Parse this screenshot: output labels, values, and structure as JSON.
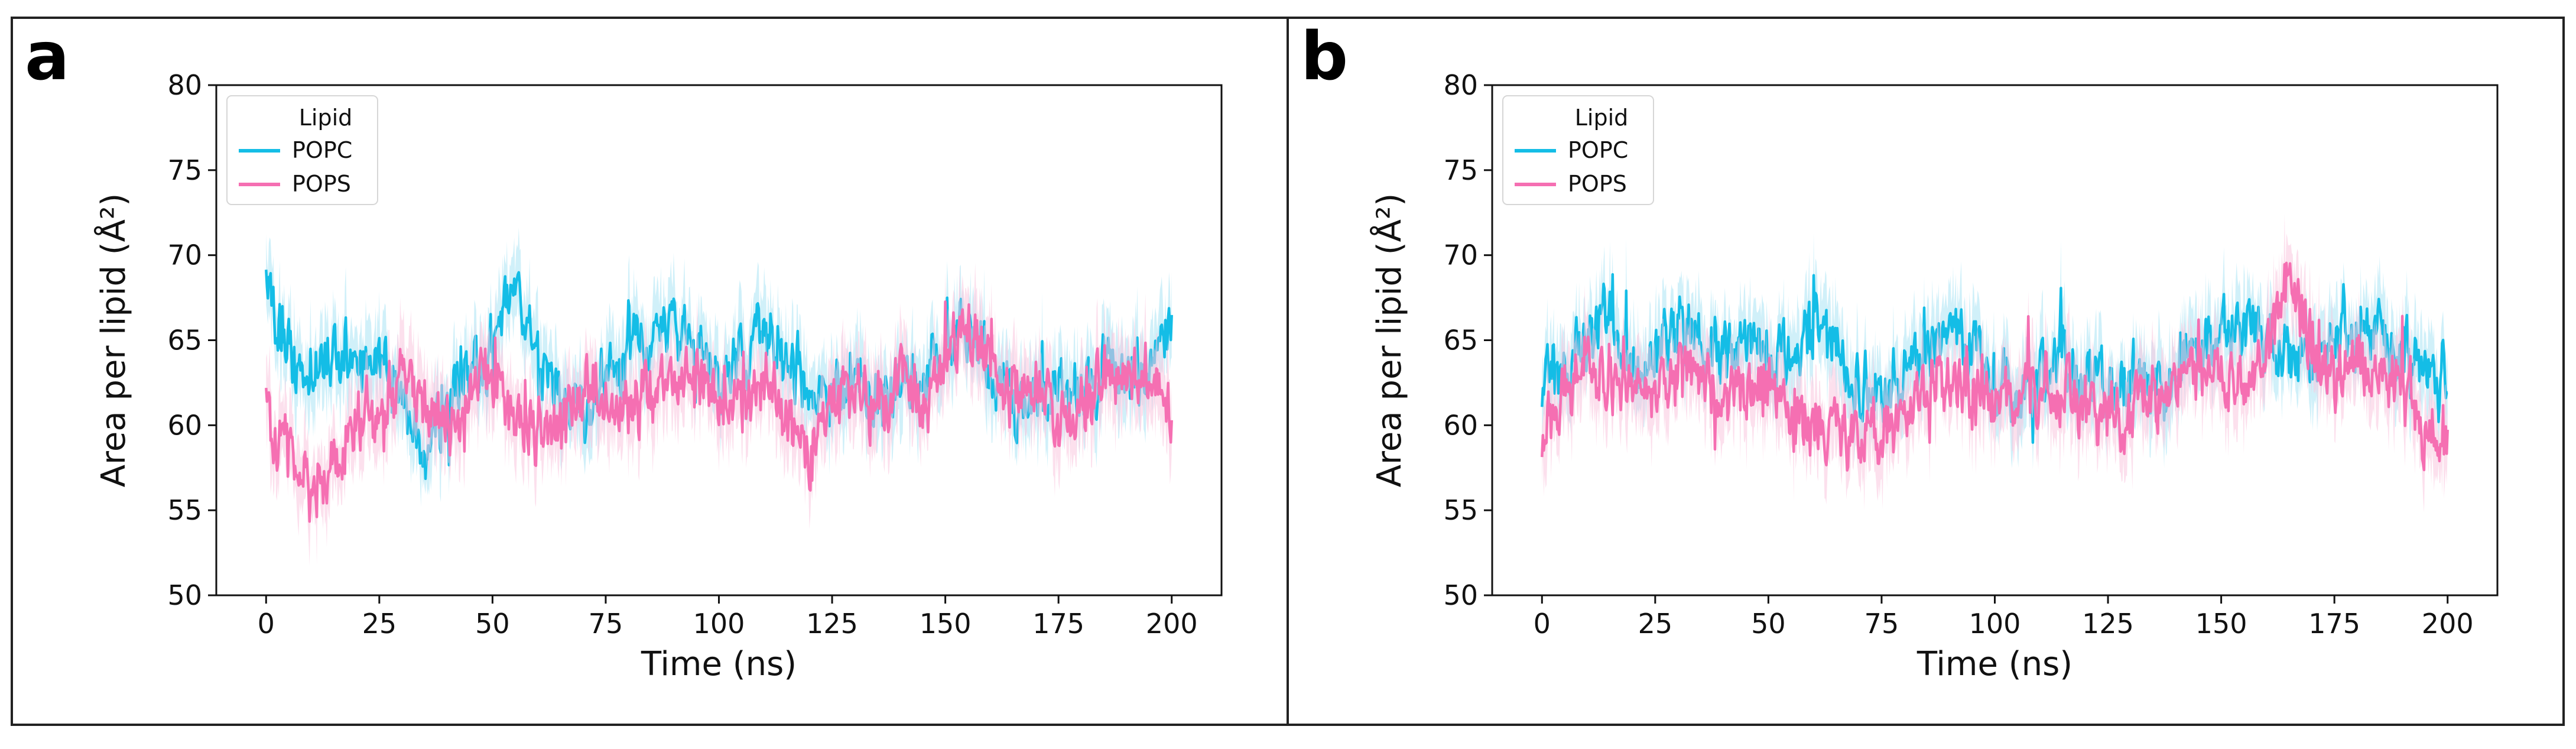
{
  "chart_data": [
    {
      "panel": "a",
      "type": "line",
      "title": "",
      "xlabel": "Time (ns)",
      "ylabel": "Area per lipid (Å²)",
      "xlim": [
        -11,
        211
      ],
      "ylim": [
        50,
        80
      ],
      "xticks": [
        0,
        25,
        50,
        75,
        100,
        125,
        150,
        175,
        200
      ],
      "yticks": [
        50,
        55,
        60,
        65,
        70,
        75,
        80
      ],
      "grid": false,
      "legend": {
        "title": "Lipid",
        "position": "top-left"
      },
      "series": [
        {
          "name": "POPC",
          "color": "#14bde6",
          "band_color": "#a9e4f4",
          "x": [
            0,
            5,
            10,
            15,
            20,
            25,
            30,
            35,
            40,
            45,
            50,
            55,
            60,
            65,
            70,
            75,
            80,
            85,
            90,
            95,
            100,
            105,
            110,
            115,
            120,
            125,
            130,
            135,
            140,
            145,
            150,
            155,
            160,
            165,
            170,
            175,
            180,
            185,
            190,
            195,
            200
          ],
          "y": [
            68,
            64,
            63,
            65,
            63.5,
            64,
            62,
            58.5,
            61,
            63,
            64,
            69,
            63,
            62,
            61,
            62,
            64,
            65,
            66,
            64,
            63,
            64,
            65.5,
            64,
            62,
            61.5,
            63,
            62,
            62,
            63.5,
            64,
            66,
            63,
            61.5,
            61,
            62,
            62,
            64,
            63,
            63,
            65
          ]
        },
        {
          "name": "POPS",
          "color": "#f56fb2",
          "band_color": "#f9c6df",
          "x": [
            0,
            5,
            10,
            15,
            20,
            25,
            30,
            35,
            40,
            45,
            50,
            55,
            60,
            65,
            70,
            75,
            80,
            85,
            90,
            95,
            100,
            105,
            110,
            115,
            120,
            125,
            130,
            135,
            140,
            145,
            150,
            155,
            160,
            165,
            170,
            175,
            180,
            185,
            190,
            195,
            200
          ],
          "y": [
            61,
            59,
            56.5,
            58,
            60,
            61,
            63,
            61.5,
            59.5,
            62,
            63,
            60,
            60,
            59.5,
            62,
            61,
            61,
            62,
            63,
            62.5,
            62,
            61,
            63,
            60.5,
            58,
            61,
            62,
            61,
            62.5,
            61,
            64,
            66,
            63,
            62,
            62,
            60,
            61,
            63,
            62,
            63,
            61
          ]
        }
      ]
    },
    {
      "panel": "b",
      "type": "line",
      "title": "",
      "xlabel": "Time (ns)",
      "ylabel": "Area per lipid (Å²)",
      "xlim": [
        -11,
        211
      ],
      "ylim": [
        50,
        80
      ],
      "xticks": [
        0,
        25,
        50,
        75,
        100,
        125,
        150,
        175,
        200
      ],
      "yticks": [
        50,
        55,
        60,
        65,
        70,
        75,
        80
      ],
      "grid": false,
      "legend": {
        "title": "Lipid",
        "position": "top-left"
      },
      "series": [
        {
          "name": "POPC",
          "color": "#14bde6",
          "band_color": "#a9e4f4",
          "x": [
            0,
            5,
            10,
            15,
            20,
            25,
            30,
            35,
            40,
            45,
            50,
            55,
            60,
            65,
            70,
            75,
            80,
            85,
            90,
            95,
            100,
            105,
            110,
            115,
            120,
            125,
            130,
            135,
            140,
            145,
            150,
            155,
            160,
            165,
            170,
            175,
            180,
            185,
            190,
            195,
            200
          ],
          "y": [
            62,
            63.5,
            65,
            66,
            63,
            64,
            66,
            65,
            64,
            64.5,
            64,
            64,
            66,
            64,
            62,
            62,
            63,
            64,
            66,
            64,
            63,
            62,
            63,
            64,
            63,
            62.5,
            63,
            62,
            63,
            65,
            65,
            66,
            65,
            64,
            64,
            65,
            66,
            65,
            64,
            63,
            63
          ]
        },
        {
          "name": "POPS",
          "color": "#f56fb2",
          "band_color": "#f9c6df",
          "x": [
            0,
            5,
            10,
            15,
            20,
            25,
            30,
            35,
            40,
            45,
            50,
            55,
            60,
            65,
            70,
            75,
            80,
            85,
            90,
            95,
            100,
            105,
            110,
            115,
            120,
            125,
            130,
            135,
            140,
            145,
            150,
            155,
            160,
            165,
            170,
            175,
            180,
            185,
            190,
            195,
            200
          ],
          "y": [
            59,
            62,
            63.5,
            63,
            62,
            62,
            63,
            62.5,
            62,
            62,
            62,
            61,
            60,
            60,
            59,
            59.5,
            61,
            62,
            63,
            62,
            62,
            61,
            62,
            62,
            61,
            60,
            61,
            61.5,
            62,
            63,
            63,
            62.5,
            64,
            69,
            65,
            63,
            64,
            63,
            62,
            60,
            59
          ]
        }
      ]
    }
  ]
}
